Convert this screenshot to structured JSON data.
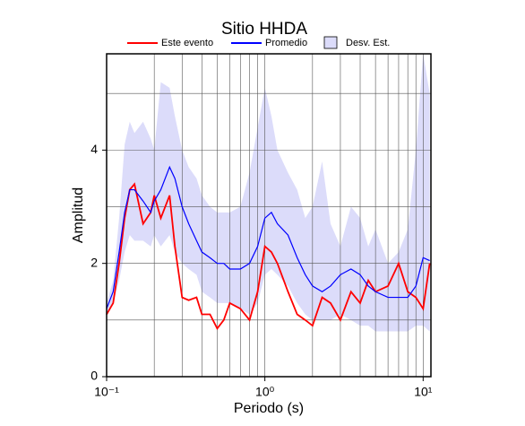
{
  "chart_data": {
    "type": "line",
    "title": "Sitio HHDA",
    "x_label": "Periodo (s)",
    "y_label": "Amplitud",
    "log_x": true,
    "grid": true,
    "xlim": [
      0.1,
      11.2
    ],
    "ylim": [
      0,
      5.7
    ],
    "xticks": [
      {
        "value": 0.1,
        "label": "10⁻¹"
      },
      {
        "value": 1,
        "label": "10⁰"
      },
      {
        "value": 10,
        "label": "10¹"
      }
    ],
    "xgrid": [
      0.2,
      0.3,
      0.4,
      0.5,
      0.6,
      0.7,
      0.8,
      0.9,
      1,
      2,
      3,
      4,
      5,
      6,
      7,
      8,
      9,
      10
    ],
    "yticks": [
      0,
      2,
      4
    ],
    "ygrid": [
      1,
      2,
      3,
      4,
      5
    ],
    "x": [
      0.1,
      0.11,
      0.12,
      0.13,
      0.14,
      0.15,
      0.17,
      0.19,
      0.2,
      0.22,
      0.25,
      0.27,
      0.3,
      0.33,
      0.37,
      0.4,
      0.45,
      0.5,
      0.55,
      0.6,
      0.7,
      0.8,
      0.9,
      1.0,
      1.1,
      1.2,
      1.4,
      1.6,
      1.8,
      2.0,
      2.3,
      2.6,
      3.0,
      3.5,
      4.0,
      4.5,
      5,
      6,
      7,
      8,
      9,
      10,
      11
    ],
    "band": {
      "name": "Desv. Est.",
      "color": "#dcdcfa",
      "upper": [
        1.3,
        1.7,
        2.8,
        4.1,
        4.5,
        4.3,
        4.5,
        4.2,
        4.0,
        5.2,
        5.1,
        4.6,
        4.0,
        3.7,
        3.5,
        3.2,
        3.0,
        2.9,
        2.9,
        2.9,
        3.0,
        3.6,
        4.4,
        5.1,
        4.6,
        4.0,
        3.6,
        3.3,
        2.8,
        3.0,
        3.8,
        2.7,
        2.3,
        3.0,
        2.8,
        2.3,
        2.6,
        2.0,
        2.2,
        2.6,
        4.0,
        5.7,
        5.0
      ],
      "lower": [
        1.1,
        1.3,
        1.7,
        2.2,
        2.5,
        2.4,
        2.4,
        2.3,
        2.5,
        2.3,
        2.5,
        2.2,
        2.0,
        1.9,
        1.8,
        1.5,
        1.4,
        1.3,
        1.3,
        1.3,
        1.2,
        1.1,
        1.3,
        1.8,
        1.9,
        1.8,
        1.6,
        1.3,
        1.1,
        1.0,
        1.0,
        1.0,
        1.1,
        1.0,
        0.9,
        0.9,
        0.8,
        0.8,
        0.8,
        0.8,
        0.9,
        0.9,
        0.8
      ]
    },
    "series": [
      {
        "name": "Este evento",
        "color": "#ff0000",
        "values": [
          1.1,
          1.3,
          2.0,
          2.8,
          3.3,
          3.4,
          2.7,
          2.9,
          3.2,
          2.8,
          3.2,
          2.3,
          1.4,
          1.35,
          1.4,
          1.1,
          1.1,
          0.85,
          1.0,
          1.3,
          1.2,
          1.0,
          1.5,
          2.3,
          2.2,
          2.0,
          1.5,
          1.1,
          1.0,
          0.9,
          1.4,
          1.3,
          1.0,
          1.5,
          1.3,
          1.7,
          1.5,
          1.6,
          2.0,
          1.5,
          1.4,
          1.2,
          2.0
        ]
      },
      {
        "name": "Promedio",
        "color": "#0000ff",
        "values": [
          1.2,
          1.5,
          2.2,
          2.9,
          3.3,
          3.3,
          3.1,
          2.9,
          3.1,
          3.3,
          3.7,
          3.5,
          3.0,
          2.7,
          2.4,
          2.2,
          2.1,
          2.0,
          2.0,
          1.9,
          1.9,
          2.0,
          2.3,
          2.8,
          2.9,
          2.7,
          2.5,
          2.1,
          1.8,
          1.6,
          1.5,
          1.6,
          1.8,
          1.9,
          1.8,
          1.6,
          1.5,
          1.4,
          1.4,
          1.4,
          1.6,
          2.1,
          2.05
        ]
      }
    ]
  }
}
